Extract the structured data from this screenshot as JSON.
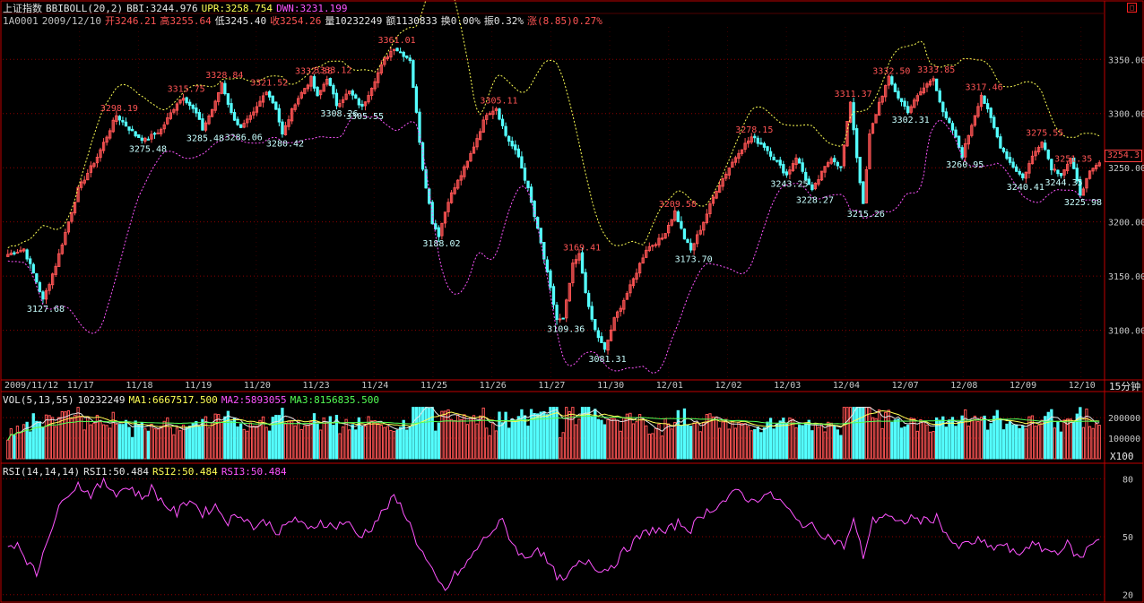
{
  "header": {
    "index_name": "上证指数",
    "indicator": "BBIBOLL(20,2)",
    "bbi": "BBI:3244.976",
    "upr": "UPR:3258.754",
    "dwn": "DWN:3231.199",
    "code": "1A0001",
    "date": "2009/12/10",
    "open": "开3246.21",
    "high": "高3255.64",
    "low": "低3245.40",
    "close": "收3254.26",
    "volume": "量10232249",
    "amount": "额1130833",
    "turnover": "换0.00%",
    "amplitude": "振0.32%",
    "change": "涨(8.85)0.27%"
  },
  "vol_header": {
    "name": "VOL(5,13,55)",
    "value": "10232249",
    "ma1": "MA1:6667517.500",
    "ma2": "MA2:5893055",
    "ma3": "MA3:8156835.500"
  },
  "rsi_header": {
    "name": "RSI(14,14,14)",
    "rsi1": "RSI1:50.484",
    "rsi2": "RSI2:50.484",
    "rsi3": "RSI3:50.484"
  },
  "period_label": "15分钟",
  "vol_unit": "X100",
  "last_price_tag": "3254.3",
  "colors": {
    "up": "#ff5454",
    "down": "#54ffff",
    "upper": "#ffff54",
    "lower": "#ff54ff",
    "grid": "#8b0000",
    "frame": "#c00000",
    "rsi": "#ff54ff",
    "ma1": "#e6e6e6",
    "ma2": "#ffff54",
    "ma3": "#54ff54"
  },
  "chart_data": {
    "type": "candlestick",
    "price_axis": {
      "ticks": [
        3100,
        3150,
        3200,
        3250,
        3300,
        3350
      ],
      "labels": [
        "3100.00",
        "3150.00",
        "3200.00",
        "3250.00",
        "3300.00",
        "3350.00"
      ],
      "range": [
        3055,
        3380
      ]
    },
    "x_labels": [
      "2009/11/12",
      "11/17",
      "11/18",
      "11/19",
      "11/20",
      "11/23",
      "11/24",
      "11/25",
      "11/26",
      "11/27",
      "11/30",
      "12/01",
      "12/02",
      "12/03",
      "12/04",
      "12/07",
      "12/08",
      "12/09",
      "12/10"
    ],
    "price_anchors": [
      [
        0,
        3170
      ],
      [
        5,
        3175
      ],
      [
        9,
        3145
      ],
      [
        11,
        3127.68
      ],
      [
        15,
        3160
      ],
      [
        22,
        3230
      ],
      [
        28,
        3260
      ],
      [
        34,
        3298.19
      ],
      [
        40,
        3280
      ],
      [
        43,
        3275.48
      ],
      [
        48,
        3285
      ],
      [
        53,
        3310
      ],
      [
        55,
        3315.75
      ],
      [
        59,
        3300
      ],
      [
        61,
        3285.48
      ],
      [
        65,
        3310
      ],
      [
        67,
        3328.84
      ],
      [
        70,
        3300
      ],
      [
        73,
        3286.06
      ],
      [
        77,
        3300
      ],
      [
        81,
        3321.52
      ],
      [
        84,
        3305
      ],
      [
        86,
        3280.42
      ],
      [
        90,
        3310
      ],
      [
        95,
        3332.38
      ],
      [
        97,
        3315
      ],
      [
        100,
        3333.12
      ],
      [
        103,
        3308.26
      ],
      [
        107,
        3320
      ],
      [
        111,
        3305.55
      ],
      [
        114,
        3325
      ],
      [
        118,
        3350
      ],
      [
        121,
        3361.01
      ],
      [
        126,
        3350
      ],
      [
        128,
        3300
      ],
      [
        130,
        3250
      ],
      [
        133,
        3200
      ],
      [
        135,
        3188.02
      ],
      [
        138,
        3220
      ],
      [
        144,
        3255
      ],
      [
        150,
        3300
      ],
      [
        153,
        3305.11
      ],
      [
        156,
        3280
      ],
      [
        160,
        3260
      ],
      [
        163,
        3230
      ],
      [
        167,
        3180
      ],
      [
        172,
        3110
      ],
      [
        174,
        3109.36
      ],
      [
        177,
        3160
      ],
      [
        179,
        3169.41
      ],
      [
        182,
        3120
      ],
      [
        184,
        3100
      ],
      [
        187,
        3081.31
      ],
      [
        190,
        3110
      ],
      [
        195,
        3140
      ],
      [
        200,
        3175
      ],
      [
        205,
        3185
      ],
      [
        209,
        3209.58
      ],
      [
        212,
        3185
      ],
      [
        214,
        3173.7
      ],
      [
        218,
        3200
      ],
      [
        222,
        3230
      ],
      [
        226,
        3250
      ],
      [
        229,
        3265
      ],
      [
        233,
        3278.15
      ],
      [
        237,
        3270
      ],
      [
        241,
        3255
      ],
      [
        244,
        3243.25
      ],
      [
        247,
        3260
      ],
      [
        250,
        3240
      ],
      [
        252,
        3228.27
      ],
      [
        255,
        3245
      ],
      [
        258,
        3260
      ],
      [
        261,
        3250
      ],
      [
        264,
        3311.37
      ],
      [
        266,
        3260
      ],
      [
        268,
        3215.26
      ],
      [
        270,
        3280
      ],
      [
        273,
        3310
      ],
      [
        276,
        3332.5
      ],
      [
        279,
        3315
      ],
      [
        282,
        3302.31
      ],
      [
        286,
        3320
      ],
      [
        290,
        3333.85
      ],
      [
        293,
        3300
      ],
      [
        296,
        3285
      ],
      [
        299,
        3260.95
      ],
      [
        302,
        3290
      ],
      [
        305,
        3317.46
      ],
      [
        308,
        3295
      ],
      [
        311,
        3270
      ],
      [
        314,
        3255
      ],
      [
        318,
        3240.41
      ],
      [
        321,
        3260
      ],
      [
        324,
        3275.55
      ],
      [
        327,
        3250
      ],
      [
        330,
        3244.35
      ],
      [
        333,
        3258
      ],
      [
        336,
        3225.98
      ],
      [
        339,
        3245
      ],
      [
        342,
        3254.26
      ]
    ],
    "candle_count": 343,
    "annotations": [
      {
        "i": 121,
        "v": 3361.01,
        "text": "3361.01",
        "pos": "above"
      },
      {
        "i": 11,
        "v": 3127.68,
        "text": "3127.68",
        "pos": "below"
      },
      {
        "i": 34,
        "v": 3298.19,
        "text": "3298.19",
        "pos": "above"
      },
      {
        "i": 43,
        "v": 3275.48,
        "text": "3275.48",
        "pos": "below"
      },
      {
        "i": 55,
        "v": 3315.75,
        "text": "3315.75",
        "pos": "above"
      },
      {
        "i": 61,
        "v": 3285.48,
        "text": "3285.48",
        "pos": "below"
      },
      {
        "i": 67,
        "v": 3328.84,
        "text": "3328.84",
        "pos": "above"
      },
      {
        "i": 73,
        "v": 3286.06,
        "text": "3286.06",
        "pos": "below"
      },
      {
        "i": 81,
        "v": 3321.52,
        "text": "3321.52",
        "pos": "above"
      },
      {
        "i": 86,
        "v": 3280.42,
        "text": "3280.42",
        "pos": "below"
      },
      {
        "i": 95,
        "v": 3332.38,
        "text": "3332.38",
        "pos": "above"
      },
      {
        "i": 101,
        "v": 3333.12,
        "text": "3333.12",
        "pos": "above"
      },
      {
        "i": 103,
        "v": 3308.26,
        "text": "3308.26",
        "pos": "below"
      },
      {
        "i": 111,
        "v": 3305.55,
        "text": "3305.55",
        "pos": "below"
      },
      {
        "i": 153,
        "v": 3305.11,
        "text": "3305.11",
        "pos": "above"
      },
      {
        "i": 135,
        "v": 3188.02,
        "text": "3188.02",
        "pos": "below"
      },
      {
        "i": 179,
        "v": 3169.41,
        "text": "3169.41",
        "pos": "above"
      },
      {
        "i": 174,
        "v": 3109.36,
        "text": "3109.36",
        "pos": "below"
      },
      {
        "i": 187,
        "v": 3081.31,
        "text": "3081.31",
        "pos": "below"
      },
      {
        "i": 209,
        "v": 3209.58,
        "text": "3209.58",
        "pos": "above"
      },
      {
        "i": 214,
        "v": 3173.7,
        "text": "3173.70",
        "pos": "below"
      },
      {
        "i": 233,
        "v": 3278.15,
        "text": "3278.15",
        "pos": "above"
      },
      {
        "i": 244,
        "v": 3243.25,
        "text": "3243.25",
        "pos": "below"
      },
      {
        "i": 252,
        "v": 3228.27,
        "text": "3228.27",
        "pos": "below"
      },
      {
        "i": 264,
        "v": 3311.37,
        "text": "3311.37",
        "pos": "above"
      },
      {
        "i": 268,
        "v": 3215.26,
        "text": "3215.26",
        "pos": "below"
      },
      {
        "i": 276,
        "v": 3332.5,
        "text": "3332.50",
        "pos": "above"
      },
      {
        "i": 290,
        "v": 3333.85,
        "text": "3333.85",
        "pos": "above"
      },
      {
        "i": 282,
        "v": 3302.31,
        "text": "3302.31",
        "pos": "below"
      },
      {
        "i": 305,
        "v": 3317.46,
        "text": "3317.46",
        "pos": "above"
      },
      {
        "i": 299,
        "v": 3260.95,
        "text": "3260.95",
        "pos": "below"
      },
      {
        "i": 324,
        "v": 3275.55,
        "text": "3275.55",
        "pos": "above"
      },
      {
        "i": 318,
        "v": 3240.41,
        "text": "3240.41",
        "pos": "below"
      },
      {
        "i": 330,
        "v": 3244.35,
        "text": "3244.35",
        "pos": "below"
      },
      {
        "i": 336,
        "v": 3225.98,
        "text": "3225.98",
        "pos": "below"
      },
      {
        "i": 333,
        "v": 3251.35,
        "text": "3251.35",
        "pos": "above"
      }
    ],
    "volume_axis": {
      "labels": [
        "200000",
        "100000"
      ],
      "values": [
        200000,
        100000
      ],
      "range": [
        0,
        270000
      ]
    },
    "rsi_axis": {
      "labels": [
        "80",
        "50",
        "20"
      ],
      "values": [
        80,
        50,
        20
      ],
      "range": [
        18,
        82
      ]
    },
    "rsi_anchors": [
      [
        0,
        45
      ],
      [
        3,
        47
      ],
      [
        6,
        38
      ],
      [
        9,
        30
      ],
      [
        12,
        48
      ],
      [
        15,
        60
      ],
      [
        18,
        72
      ],
      [
        22,
        77
      ],
      [
        26,
        72
      ],
      [
        30,
        78
      ],
      [
        34,
        73
      ],
      [
        38,
        76
      ],
      [
        42,
        70
      ],
      [
        45,
        75
      ],
      [
        49,
        67
      ],
      [
        53,
        62
      ],
      [
        57,
        70
      ],
      [
        61,
        62
      ],
      [
        65,
        66
      ],
      [
        69,
        58
      ],
      [
        73,
        62
      ],
      [
        77,
        55
      ],
      [
        81,
        58
      ],
      [
        85,
        52
      ],
      [
        90,
        60
      ],
      [
        94,
        53
      ],
      [
        98,
        58
      ],
      [
        102,
        55
      ],
      [
        106,
        58
      ],
      [
        110,
        50
      ],
      [
        114,
        55
      ],
      [
        118,
        64
      ],
      [
        121,
        70
      ],
      [
        124,
        64
      ],
      [
        128,
        48
      ],
      [
        131,
        38
      ],
      [
        134,
        28
      ],
      [
        137,
        22
      ],
      [
        140,
        30
      ],
      [
        143,
        34
      ],
      [
        147,
        44
      ],
      [
        151,
        52
      ],
      [
        155,
        58
      ],
      [
        158,
        47
      ],
      [
        162,
        38
      ],
      [
        166,
        45
      ],
      [
        170,
        34
      ],
      [
        174,
        26
      ],
      [
        178,
        35
      ],
      [
        182,
        38
      ],
      [
        186,
        32
      ],
      [
        190,
        36
      ],
      [
        194,
        44
      ],
      [
        198,
        50
      ],
      [
        202,
        54
      ],
      [
        206,
        52
      ],
      [
        210,
        57
      ],
      [
        214,
        54
      ],
      [
        218,
        62
      ],
      [
        222,
        66
      ],
      [
        226,
        70
      ],
      [
        229,
        74
      ],
      [
        233,
        68
      ],
      [
        237,
        72
      ],
      [
        241,
        70
      ],
      [
        244,
        65
      ],
      [
        247,
        58
      ],
      [
        251,
        56
      ],
      [
        255,
        52
      ],
      [
        259,
        48
      ],
      [
        262,
        45
      ],
      [
        265,
        58
      ],
      [
        268,
        40
      ],
      [
        271,
        58
      ],
      [
        275,
        62
      ],
      [
        279,
        56
      ],
      [
        283,
        60
      ],
      [
        287,
        58
      ],
      [
        291,
        60
      ],
      [
        294,
        52
      ],
      [
        297,
        44
      ],
      [
        300,
        46
      ],
      [
        304,
        48
      ],
      [
        308,
        44
      ],
      [
        312,
        46
      ],
      [
        316,
        40
      ],
      [
        320,
        46
      ],
      [
        324,
        44
      ],
      [
        328,
        42
      ],
      [
        332,
        46
      ],
      [
        336,
        38
      ],
      [
        339,
        46
      ],
      [
        342,
        50
      ]
    ]
  }
}
